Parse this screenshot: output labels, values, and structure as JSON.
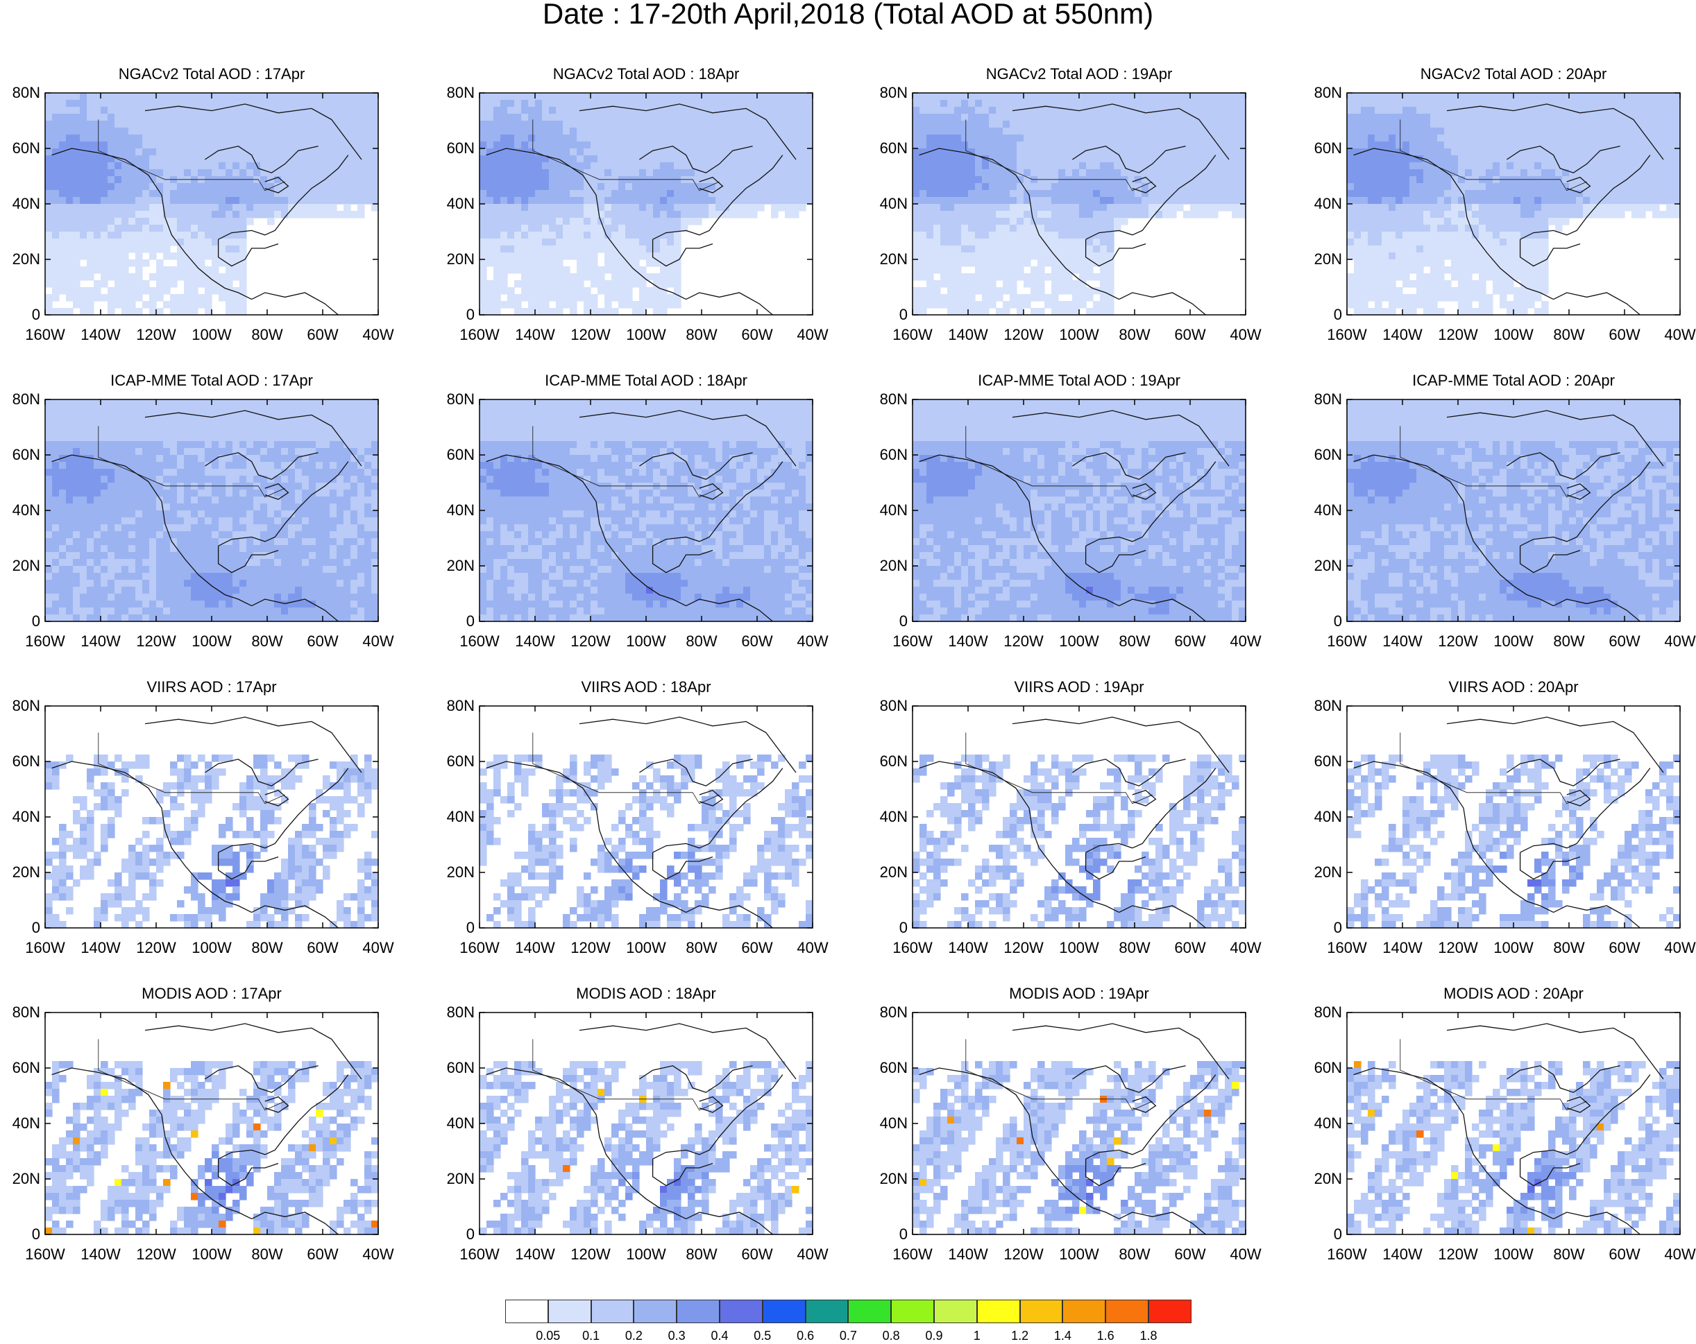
{
  "title": "Date : 17-20th April,2018 (Total AOD at 550nm)",
  "x_ticks": [
    "160W",
    "140W",
    "120W",
    "100W",
    "80W",
    "60W",
    "40W"
  ],
  "y_ticks": [
    "80N",
    "60N",
    "40N",
    "20N",
    "0"
  ],
  "rows": [
    {
      "id": "ngac",
      "panels": [
        {
          "title": "NGACv2 Total AOD : 17Apr"
        },
        {
          "title": "NGACv2 Total AOD : 18Apr"
        },
        {
          "title": "NGACv2 Total AOD : 19Apr"
        },
        {
          "title": "NGACv2 Total AOD : 20Apr"
        }
      ]
    },
    {
      "id": "icap",
      "panels": [
        {
          "title": "ICAP-MME Total AOD : 17Apr"
        },
        {
          "title": "ICAP-MME Total AOD : 18Apr"
        },
        {
          "title": "ICAP-MME Total AOD : 19Apr"
        },
        {
          "title": "ICAP-MME Total AOD : 20Apr"
        }
      ]
    },
    {
      "id": "viirs",
      "panels": [
        {
          "title": "VIIRS AOD : 17Apr"
        },
        {
          "title": "VIIRS AOD : 18Apr"
        },
        {
          "title": "VIIRS AOD : 19Apr"
        },
        {
          "title": "VIIRS AOD : 20Apr"
        }
      ]
    },
    {
      "id": "modis",
      "panels": [
        {
          "title": "MODIS AOD : 17Apr"
        },
        {
          "title": "MODIS AOD : 18Apr"
        },
        {
          "title": "MODIS AOD : 19Apr"
        },
        {
          "title": "MODIS AOD : 20Apr"
        }
      ]
    }
  ],
  "colorbar": {
    "colors": [
      "#ffffff",
      "#d6e2fb",
      "#b9cbf6",
      "#9bb3f1",
      "#7e99ec",
      "#6470e6",
      "#1c5cf3",
      "#159a90",
      "#35e32b",
      "#95f51b",
      "#c8f54b",
      "#ffff18",
      "#f9c30e",
      "#f69a0b",
      "#f8740c",
      "#f9280e"
    ],
    "labels": [
      "0.05",
      "0.1",
      "0.2",
      "0.3",
      "0.4",
      "0.5",
      "0.6",
      "0.7",
      "0.8",
      "0.9",
      "1",
      "1.2",
      "1.4",
      "1.6",
      "1.8"
    ]
  }
}
